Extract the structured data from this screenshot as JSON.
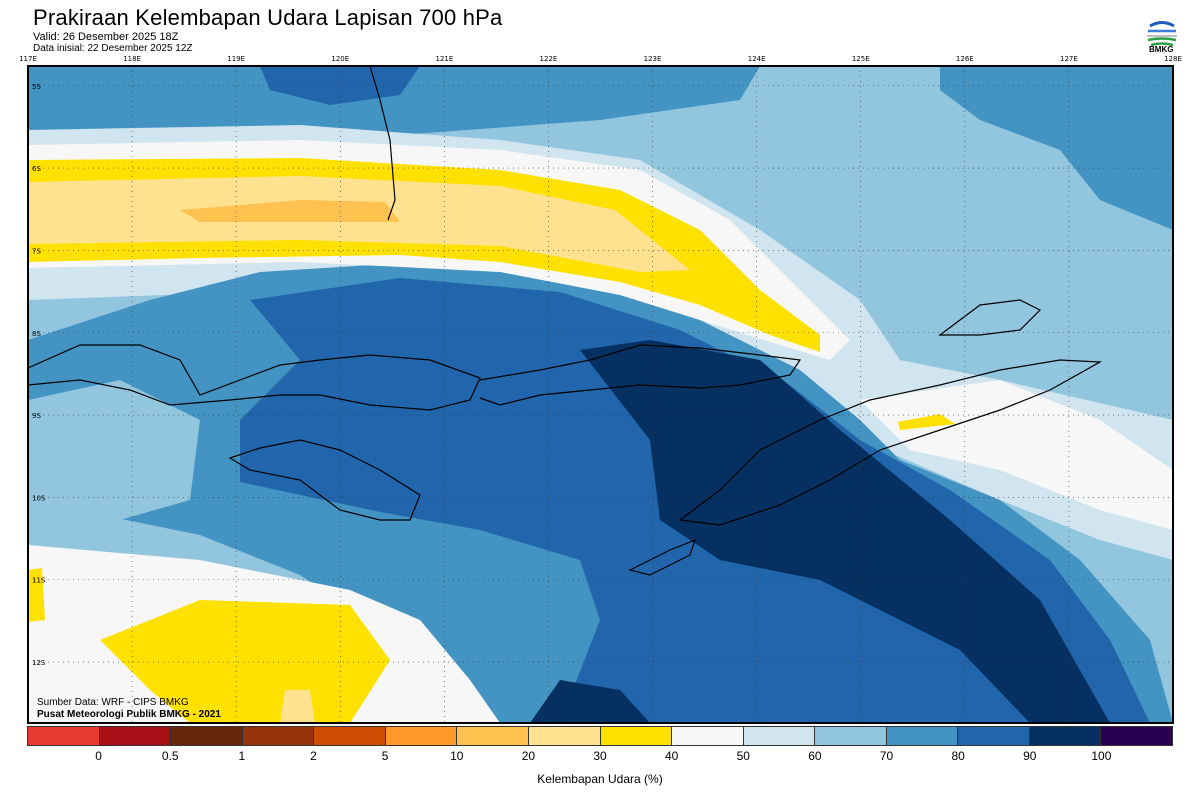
{
  "header": {
    "title": "Prakiraan Kelembapan Udara Lapisan 700 hPa",
    "valid": "Valid: 26 Desember 2025 18Z",
    "initial": "Data inisial: 22 Desember 2025 12Z",
    "logo_text": "BMKG"
  },
  "map": {
    "lon_ticks": [
      "117E",
      "118E",
      "119E",
      "120E",
      "121E",
      "122E",
      "123E",
      "124E",
      "125E",
      "126E",
      "127E",
      "128E"
    ],
    "lon_values": [
      117,
      118,
      119,
      120,
      121,
      122,
      123,
      124,
      125,
      126,
      127,
      128
    ],
    "lat_ticks": [
      "5S",
      "6S",
      "7S",
      "8S",
      "9S",
      "10S",
      "11S",
      "12S"
    ],
    "lat_values": [
      -5,
      -6,
      -7,
      -8,
      -9,
      -10,
      -11,
      -12
    ],
    "extent": {
      "lon_min": 117,
      "lon_max": 128,
      "lat_max": -4.76,
      "lat_min": -12.74
    }
  },
  "credits": {
    "source": "Sumber Data: WRF - CIPS BMKG",
    "center": "Pusat Meteorologi Publik BMKG - 2021"
  },
  "colorbar": {
    "title": "Kelembapan Udara (%)",
    "labels": [
      "0",
      "0.5",
      "1",
      "2",
      "5",
      "10",
      "20",
      "30",
      "40",
      "50",
      "60",
      "70",
      "80",
      "90",
      "100"
    ],
    "colors": [
      "#E63B30",
      "#A50F15",
      "#67250C",
      "#983409",
      "#CC4C02",
      "#FE9929",
      "#FFC251",
      "#FFE28F",
      "#FFE100",
      "#F7F7F7",
      "#D1E5F0",
      "#92C5DE",
      "#4393C3",
      "#2166AC",
      "#053061",
      "#2A0050"
    ]
  }
}
